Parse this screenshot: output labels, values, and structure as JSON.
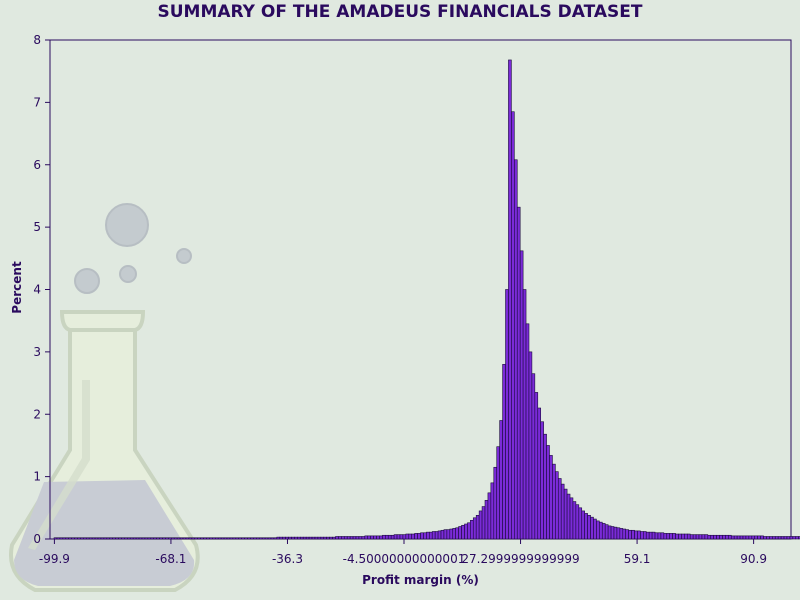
{
  "colors": {
    "background": "#e0e9e0",
    "text": "#2a0a5e",
    "bar_fill": "#7b2bd8",
    "bar_stroke": "#1a0a3c",
    "axis": "#2a0a5e",
    "flask_glass": "#e8efe0",
    "flask_outline": "#c9d4c0",
    "flask_liquid": "#c8ccd4"
  },
  "watermark": {
    "icon": "flask-icon"
  },
  "chart_data": {
    "type": "bar",
    "title": "SUMMARY OF THE AMADEUS FINANCIALS DATASET",
    "xlabel": "Profit margin (%)",
    "ylabel": "Percent",
    "xlim": [
      -101.1,
      101.1
    ],
    "ylim": [
      0,
      8
    ],
    "yticks": [
      "0",
      "1",
      "2",
      "3",
      "4",
      "5",
      "6",
      "7",
      "8"
    ],
    "xticks": [
      {
        "value": -99.9,
        "label": "-99.9"
      },
      {
        "value": -68.1,
        "label": "-68.1"
      },
      {
        "value": -36.3,
        "label": "-36.3"
      },
      {
        "value": -4.5,
        "label": "-4.50000000000001"
      },
      {
        "value": 27.3,
        "label": "27.2999999999999"
      },
      {
        "value": 59.1,
        "label": "59.1"
      },
      {
        "value": 90.9,
        "label": "90.9"
      }
    ],
    "bins": {
      "start": -100.0,
      "width": 0.8,
      "values": [
        0.02,
        0.02,
        0.02,
        0.02,
        0.02,
        0.02,
        0.02,
        0.02,
        0.02,
        0.02,
        0.02,
        0.02,
        0.02,
        0.02,
        0.02,
        0.02,
        0.02,
        0.02,
        0.02,
        0.02,
        0.02,
        0.02,
        0.02,
        0.02,
        0.02,
        0.02,
        0.02,
        0.02,
        0.02,
        0.02,
        0.02,
        0.02,
        0.02,
        0.02,
        0.02,
        0.02,
        0.02,
        0.02,
        0.02,
        0.02,
        0.02,
        0.02,
        0.02,
        0.02,
        0.02,
        0.02,
        0.02,
        0.02,
        0.02,
        0.02,
        0.02,
        0.02,
        0.02,
        0.02,
        0.02,
        0.02,
        0.02,
        0.02,
        0.02,
        0.02,
        0.02,
        0.02,
        0.02,
        0.02,
        0.02,
        0.02,
        0.02,
        0.02,
        0.02,
        0.02,
        0.02,
        0.02,
        0.02,
        0.02,
        0.02,
        0.02,
        0.03,
        0.03,
        0.03,
        0.03,
        0.03,
        0.03,
        0.03,
        0.03,
        0.03,
        0.03,
        0.03,
        0.03,
        0.03,
        0.03,
        0.03,
        0.03,
        0.03,
        0.03,
        0.03,
        0.03,
        0.04,
        0.04,
        0.04,
        0.04,
        0.04,
        0.04,
        0.04,
        0.04,
        0.04,
        0.04,
        0.05,
        0.05,
        0.05,
        0.05,
        0.05,
        0.05,
        0.06,
        0.06,
        0.06,
        0.06,
        0.07,
        0.07,
        0.07,
        0.07,
        0.08,
        0.08,
        0.08,
        0.09,
        0.09,
        0.1,
        0.1,
        0.11,
        0.11,
        0.12,
        0.12,
        0.13,
        0.14,
        0.15,
        0.15,
        0.16,
        0.17,
        0.18,
        0.2,
        0.22,
        0.24,
        0.26,
        0.3,
        0.34,
        0.38,
        0.45,
        0.52,
        0.62,
        0.74,
        0.9,
        1.15,
        1.48,
        1.9,
        2.8,
        4.0,
        7.68,
        6.85,
        6.08,
        5.32,
        4.62,
        4.0,
        3.45,
        3.0,
        2.65,
        2.35,
        2.1,
        1.88,
        1.68,
        1.5,
        1.34,
        1.2,
        1.08,
        0.97,
        0.88,
        0.8,
        0.72,
        0.66,
        0.6,
        0.55,
        0.5,
        0.45,
        0.41,
        0.38,
        0.35,
        0.32,
        0.29,
        0.27,
        0.25,
        0.23,
        0.21,
        0.2,
        0.19,
        0.18,
        0.17,
        0.16,
        0.15,
        0.14,
        0.14,
        0.13,
        0.13,
        0.12,
        0.12,
        0.11,
        0.11,
        0.11,
        0.1,
        0.1,
        0.1,
        0.09,
        0.09,
        0.09,
        0.09,
        0.08,
        0.08,
        0.08,
        0.08,
        0.08,
        0.07,
        0.07,
        0.07,
        0.07,
        0.07,
        0.07,
        0.06,
        0.06,
        0.06,
        0.06,
        0.06,
        0.06,
        0.06,
        0.06,
        0.05,
        0.05,
        0.05,
        0.05,
        0.05,
        0.05,
        0.05,
        0.05,
        0.05,
        0.05,
        0.05,
        0.04,
        0.04,
        0.04,
        0.04,
        0.04,
        0.04,
        0.04,
        0.04,
        0.04,
        0.04,
        0.04,
        0.04,
        0.04,
        0.04,
        0.04,
        0.04,
        0.04,
        0.04,
        0.03,
        0.03,
        0.03,
        0.03,
        0.03,
        0.03,
        0.03,
        0.03,
        0.03,
        0.03,
        0.03,
        0.03,
        0.03,
        0.03,
        0.03,
        0.03,
        0.03,
        0.03,
        0.03,
        0.03,
        0.03,
        0.03,
        0.03,
        0.03,
        0.03,
        0.03,
        0.03,
        0.03,
        0.03,
        0.03,
        0.03,
        0.03,
        0.03,
        0.03,
        0.03,
        0.03,
        0.03,
        0.03,
        0.03,
        0.03,
        0.03,
        0.03,
        0.03,
        0.03,
        0.03,
        0.03,
        0.03,
        0.03,
        0.03,
        0.03,
        0.03,
        0.03,
        0.03,
        0.03,
        0.03,
        0.03,
        0.03,
        0.03,
        0.03,
        0.03,
        0.03,
        0.03,
        0.03,
        0.03,
        0.03,
        0.1
      ]
    }
  }
}
